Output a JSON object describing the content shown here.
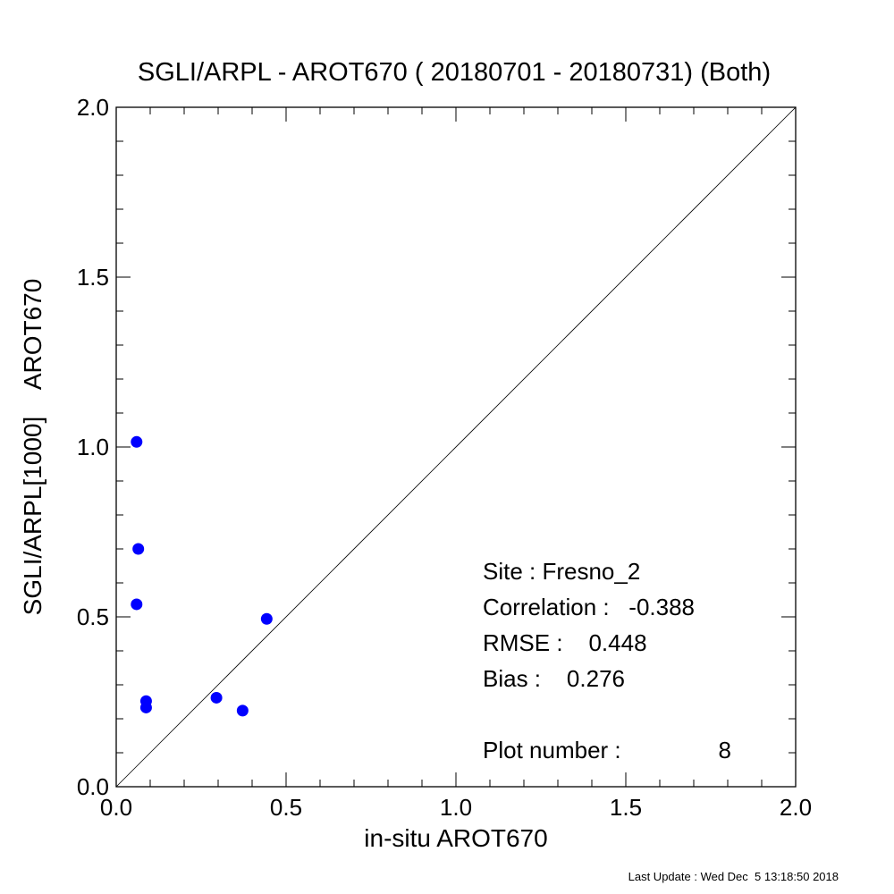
{
  "chart_data": {
    "type": "scatter",
    "title": "SGLI/ARPL - AROT670 ( 20180701 - 20180731) (Both)",
    "xlabel": "in-situ AROT670",
    "ylabel": "SGLI/ARPL[1000]    AROT670",
    "xlim": [
      0.0,
      2.0
    ],
    "ylim": [
      0.0,
      2.0
    ],
    "xticks": [
      "0.0",
      "0.5",
      "1.0",
      "1.5",
      "2.0"
    ],
    "yticks": [
      "0.0",
      "0.5",
      "1.0",
      "1.5",
      "2.0"
    ],
    "grid": false,
    "reference_line": "1:1",
    "point_color": "#0000ff",
    "series": [
      {
        "points": [
          {
            "x": 0.06,
            "y": 1.015
          },
          {
            "x": 0.065,
            "y": 0.7
          },
          {
            "x": 0.06,
            "y": 0.537
          },
          {
            "x": 0.088,
            "y": 0.252
          },
          {
            "x": 0.088,
            "y": 0.233
          },
          {
            "x": 0.295,
            "y": 0.262
          },
          {
            "x": 0.372,
            "y": 0.224
          },
          {
            "x": 0.443,
            "y": 0.494
          }
        ]
      }
    ],
    "annotations": {
      "site": "Site : Fresno_2",
      "correlation": "Correlation :   -0.388",
      "rmse": "RMSE :    0.448",
      "bias": "Bias :    0.276",
      "plot_number_label": "Plot number :",
      "plot_number_value": "8"
    }
  },
  "footer": "Last Update : Wed Dec  5 13:18:50 2018"
}
